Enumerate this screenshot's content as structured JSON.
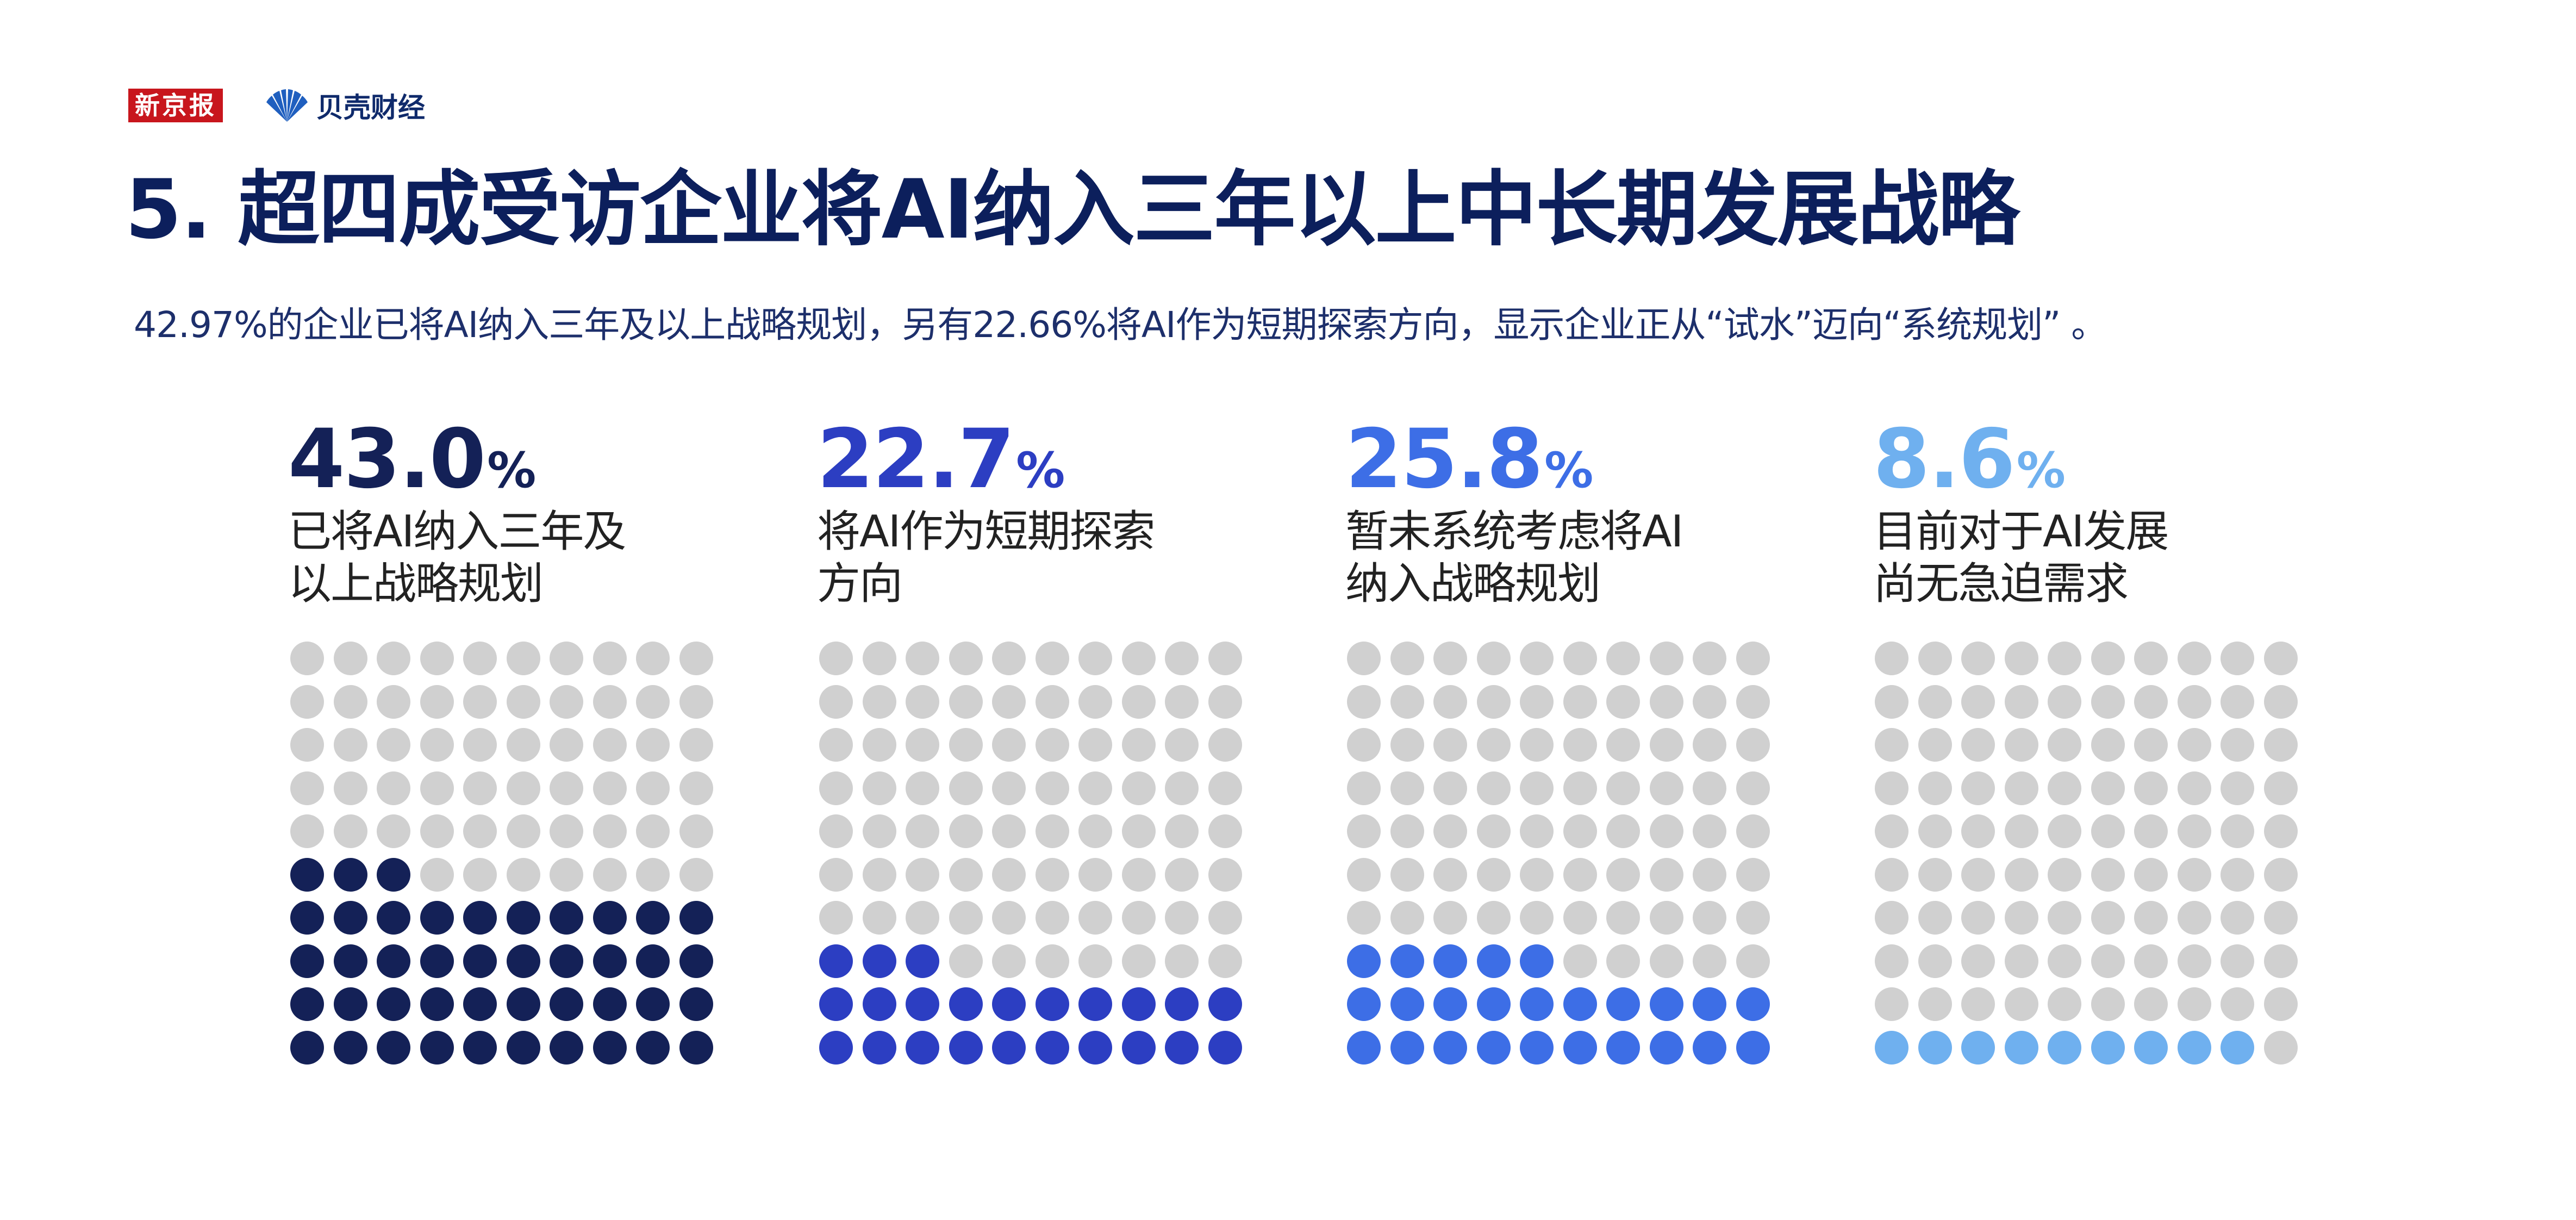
{
  "header": {
    "logo_xinjingbao": "新京报",
    "logo_beike": "贝壳财经",
    "title": "5. 超四成受访企业将AI纳入三年以上中长期发展战略",
    "subtitle": "42.97%的企业已将AI纳入三年及以上战略规划，另有22.66%将AI作为短期探索方向，显示企业正从“试水”迈向“系统规划” 。"
  },
  "colors": {
    "empty_dot": "#d0d0d0",
    "title": "#0c1f5c",
    "logo_red": "#c8161d"
  },
  "chart_data": {
    "type": "waffle",
    "total_dots": 100,
    "grid": "10x10",
    "series": [
      {
        "label": "已将AI纳入三年及\n以上战略规划",
        "value": 43.0,
        "value_text": "43.0",
        "dots": 43,
        "color": "#142157"
      },
      {
        "label": "将AI作为短期探索\n方向",
        "value": 22.7,
        "value_text": "22.7",
        "dots": 23,
        "color": "#2c3ec2"
      },
      {
        "label": "暂未系统考虑将AI\n纳入战略规划",
        "value": 25.8,
        "value_text": "25.8",
        "dots": 25,
        "color": "#3d6ee6"
      },
      {
        "label": "目前对于AI发展\n尚无急迫需求",
        "value": 8.6,
        "value_text": "8.6",
        "dots": 9,
        "color": "#6fb0ef"
      }
    ],
    "percent_sign": "%"
  }
}
